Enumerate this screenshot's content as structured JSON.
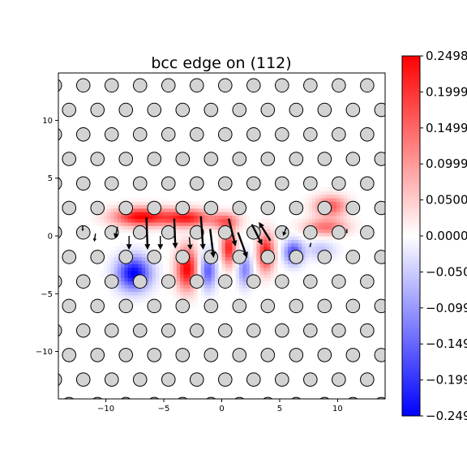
{
  "chart_data": {
    "type": "heatmap",
    "title": "bcc edge on (112)",
    "xlabel": "",
    "ylabel": "",
    "xlim": [
      -14.1,
      14.1
    ],
    "ylim": [
      -14.1,
      14.1
    ],
    "x_ticks": [
      "−10",
      "−5",
      "0",
      "5",
      "10"
    ],
    "x_tick_values": [
      -10,
      -5,
      0,
      5,
      10
    ],
    "y_ticks": [
      "10",
      "5",
      "0",
      "−5",
      "−10"
    ],
    "y_tick_values": [
      10,
      5,
      0,
      -5,
      -10
    ],
    "grid": false,
    "colormap": "bwr",
    "colors": {
      "low": "#0000ff",
      "mid": "#ffffff",
      "high": "#ff0000",
      "atom_fill": "#d3d3d3",
      "atom_edge": "#000000"
    },
    "colorbar": {
      "range": [
        -0.2498,
        0.2498
      ],
      "ticks": [
        "0.2498",
        "0.1999",
        "0.1499",
        "0.0999",
        "0.0500",
        "0.0000",
        "−0.050",
        "−0.099",
        "−0.149",
        "−0.199",
        "−0.249"
      ],
      "tick_values": [
        0.2498,
        0.1999,
        0.1499,
        0.0999,
        0.05,
        0.0,
        -0.05,
        -0.0999,
        -0.1499,
        -0.1999,
        -0.2498
      ]
    },
    "lattice": {
      "a1": [
        2.45,
        0
      ],
      "a2": [
        1.225,
        2.121
      ],
      "origin": [
        0.3,
        0.3
      ],
      "atom_radius": 0.58
    },
    "hotspots": [
      {
        "x": -7.0,
        "y": 1.7,
        "value": 0.25,
        "sx": 2.3,
        "sy": 0.8
      },
      {
        "x": -3.0,
        "y": 1.6,
        "value": 0.22,
        "sx": 2.0,
        "sy": 0.75
      },
      {
        "x": 0.3,
        "y": 1.3,
        "value": 0.15,
        "sx": 1.2,
        "sy": 0.7
      },
      {
        "x": 9.4,
        "y": 2.6,
        "value": 0.16,
        "sx": 1.4,
        "sy": 0.9
      },
      {
        "x": 9.0,
        "y": 0.8,
        "value": 0.14,
        "sx": 1.8,
        "sy": 0.7
      },
      {
        "x": -3.0,
        "y": -2.8,
        "value": 0.25,
        "sx": 0.9,
        "sy": 1.8
      },
      {
        "x": 0.6,
        "y": -1.0,
        "value": 0.22,
        "sx": 0.6,
        "sy": 1.5
      },
      {
        "x": 3.8,
        "y": -1.4,
        "value": 0.23,
        "sx": 0.7,
        "sy": 1.6
      },
      {
        "x": -7.6,
        "y": -3.2,
        "value": -0.25,
        "sx": 1.4,
        "sy": 1.4
      },
      {
        "x": -1.2,
        "y": -3.0,
        "value": -0.16,
        "sx": 0.7,
        "sy": 1.5
      },
      {
        "x": 2.0,
        "y": -2.9,
        "value": -0.12,
        "sx": 0.6,
        "sy": 1.4
      },
      {
        "x": 6.2,
        "y": -1.4,
        "value": -0.18,
        "sx": 0.8,
        "sy": 1.0
      },
      {
        "x": 8.6,
        "y": -1.2,
        "value": -0.06,
        "sx": 1.2,
        "sy": 0.8
      }
    ],
    "arrows": [
      {
        "x": -6.5,
        "y": 1.6,
        "dx": 0.1,
        "dy": -2.8
      },
      {
        "x": -4.1,
        "y": 1.5,
        "dx": 0.1,
        "dy": -2.6
      },
      {
        "x": -1.8,
        "y": 1.7,
        "dx": 0.2,
        "dy": -2.9
      },
      {
        "x": -1.0,
        "y": 0.6,
        "dx": 0.3,
        "dy": -2.5
      },
      {
        "x": 0.6,
        "y": 1.5,
        "dx": 0.6,
        "dy": -2.4
      },
      {
        "x": 1.4,
        "y": 0.3,
        "dx": 0.8,
        "dy": -2.2
      },
      {
        "x": 2.6,
        "y": 1.0,
        "dx": 0.9,
        "dy": -1.8
      },
      {
        "x": 4.2,
        "y": -0.4,
        "dx": -1.0,
        "dy": 1.6
      },
      {
        "x": -9.0,
        "y": 0.8,
        "dx": -0.2,
        "dy": -1.0
      },
      {
        "x": -8.0,
        "y": 0.0,
        "dx": 0.0,
        "dy": -1.2
      },
      {
        "x": -5.3,
        "y": 0.0,
        "dx": 0.0,
        "dy": -1.2
      },
      {
        "x": -2.8,
        "y": -0.1,
        "dx": 0.1,
        "dy": -1.1
      },
      {
        "x": 5.6,
        "y": 0.8,
        "dx": -0.3,
        "dy": -0.8
      },
      {
        "x": -12.0,
        "y": 0.9,
        "dx": 0.0,
        "dy": -0.5
      },
      {
        "x": -10.9,
        "y": 0.2,
        "dx": -0.1,
        "dy": -0.7
      },
      {
        "x": 7.7,
        "y": -0.6,
        "dx": -0.1,
        "dy": -0.4
      },
      {
        "x": 10.8,
        "y": 0.6,
        "dx": 0.0,
        "dy": -0.4
      }
    ]
  }
}
